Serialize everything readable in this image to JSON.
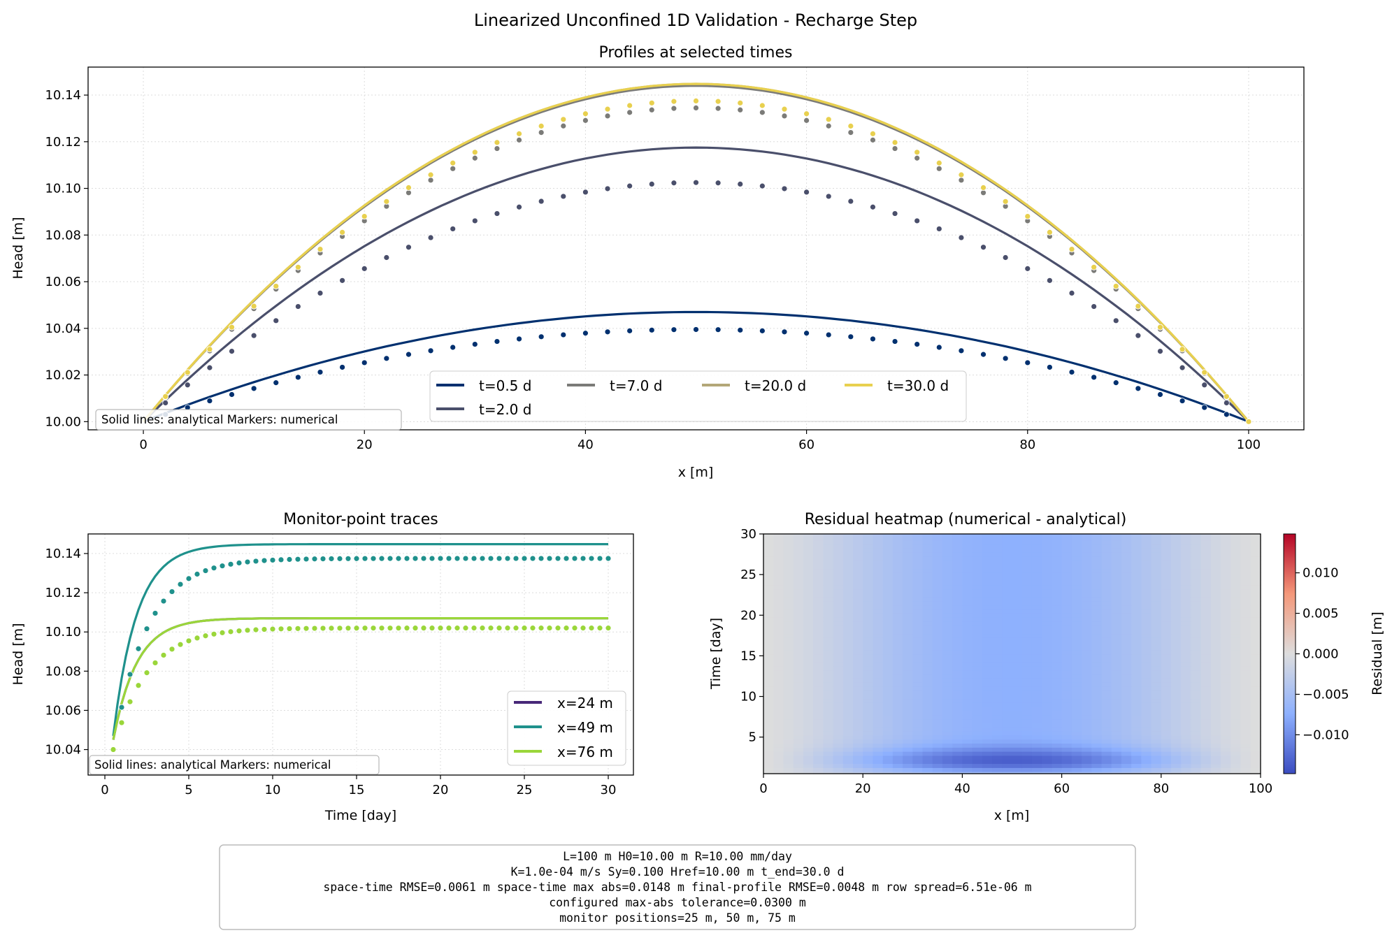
{
  "suptitle": "Linearized Unconfined 1D Validation - Recharge Step",
  "colors": {
    "t0_5": "#00306f",
    "t2": "#4a4f6b",
    "t7": "#7b7b78",
    "t20": "#b3a778",
    "t30": "#e8d04f",
    "x24": "#482878",
    "x49": "#1f918c",
    "x76": "#9ad63a"
  },
  "chart_data": [
    {
      "type": "line",
      "title": "Profiles at selected times",
      "xlabel": "x [m]",
      "ylabel": "Head [m]",
      "xlim": [
        -5,
        105
      ],
      "ylim": [
        9.9965,
        10.152
      ],
      "xticks": [
        0,
        20,
        40,
        60,
        80,
        100
      ],
      "yticks": [
        "10.00",
        "10.02",
        "10.04",
        "10.06",
        "10.08",
        "10.10",
        "10.12",
        "10.14"
      ],
      "grid": true,
      "legend_placement": "lower center",
      "legend_columns": 4,
      "note": "Solid lines: analytical   Markers: numerical",
      "series": [
        {
          "name": "t=0.5 d",
          "color_key": "t0_5",
          "analytical_peak": 10.047,
          "numerical_peak": 10.0395
        },
        {
          "name": "t=2.0 d",
          "color_key": "t2",
          "analytical_peak": 10.1175,
          "numerical_peak": 10.1025
        },
        {
          "name": "t=7.0 d",
          "color_key": "t7",
          "analytical_peak": 10.144,
          "numerical_peak": 10.1345
        },
        {
          "name": "t=20.0 d",
          "color_key": "t20",
          "analytical_peak": 10.1448,
          "numerical_peak": 10.1375
        },
        {
          "name": "t=30.0 d",
          "color_key": "t30",
          "analytical_peak": 10.1448,
          "numerical_peak": 10.1375
        }
      ],
      "numerical_x_step": 2
    },
    {
      "type": "line",
      "title": "Monitor-point traces",
      "xlabel": "Time [day]",
      "ylabel": "Head [m]",
      "xlim": [
        -1,
        31.5
      ],
      "ylim": [
        10.027,
        10.15
      ],
      "xticks": [
        0,
        5,
        10,
        15,
        20,
        25,
        30
      ],
      "yticks": [
        "10.04",
        "10.06",
        "10.08",
        "10.10",
        "10.12",
        "10.14"
      ],
      "grid": true,
      "legend_placement": "lower right",
      "note": "Solid lines: analytical   Markers: numerical",
      "series": [
        {
          "name": "x=24 m",
          "color_key": "x24",
          "t0": 0.5,
          "analytical_start": 10.045,
          "analytical_final": 10.107,
          "numerical_start": 10.04,
          "numerical_final": 10.102,
          "tau_analytical": 1.4,
          "tau_numerical": 2.0
        },
        {
          "name": "x=49 m",
          "color_key": "x49",
          "t0": 0.5,
          "analytical_start": 10.047,
          "analytical_final": 10.1448,
          "numerical_start": 10.04,
          "numerical_final": 10.1375,
          "tau_analytical": 1.4,
          "tau_numerical": 2.0
        },
        {
          "name": "x=76 m",
          "color_key": "x76",
          "t0": 0.5,
          "analytical_start": 10.045,
          "analytical_final": 10.107,
          "numerical_start": 10.04,
          "numerical_final": 10.102,
          "tau_analytical": 1.4,
          "tau_numerical": 2.0
        }
      ],
      "numerical_t_step": 0.5
    },
    {
      "type": "heatmap",
      "title": "Residual heatmap (numerical - analytical)",
      "xlabel": "x [m]",
      "ylabel": "Time [day]",
      "xlim": [
        0,
        100
      ],
      "ylim": [
        0.5,
        30
      ],
      "xticks": [
        0,
        20,
        40,
        60,
        80,
        100
      ],
      "yticks": [
        5,
        10,
        15,
        20,
        25,
        30
      ],
      "colorbar_label": "Residual [m]",
      "colorbar_range": [
        -0.0148,
        0.0148
      ],
      "colorbar_ticks": [
        "0.010",
        "0.005",
        "0.000",
        "−0.005",
        "−0.010"
      ],
      "colormap": "coolwarm",
      "min_residual": -0.0148,
      "min_location": {
        "x": 50,
        "t": 2
      },
      "steady_residual_center": -0.0073
    }
  ],
  "summary_box": {
    "lines": [
      "L=100 m   H0=10.00 m   R=10.00 mm/day",
      "K=1.0e-04 m/s   Sy=0.100   Href=10.00 m   t_end=30.0 d",
      "space-time RMSE=0.0061 m   space-time max abs=0.0148 m   final-profile RMSE=0.0048 m   row spread=6.51e-06 m",
      "configured max-abs tolerance=0.0300 m",
      "monitor positions=25 m, 50 m, 75 m"
    ]
  }
}
